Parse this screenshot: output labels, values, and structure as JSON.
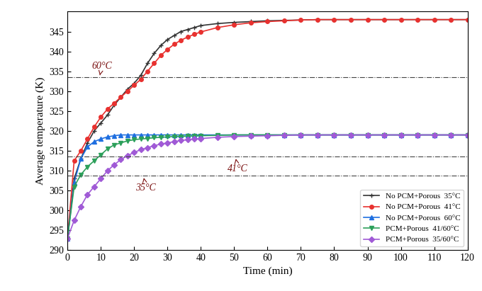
{
  "chart_data": {
    "type": "line",
    "x_label": "Time (min)",
    "y_label": "Average temperature (K)",
    "x": [
      0,
      2,
      4,
      6,
      8,
      10,
      12,
      14,
      16,
      18,
      20,
      22,
      24,
      26,
      28,
      30,
      32,
      34,
      36,
      38,
      40,
      45,
      50,
      55,
      60,
      65,
      70,
      75,
      80,
      85,
      90,
      95,
      100,
      105,
      110,
      115,
      120
    ],
    "series": [
      {
        "name": "No PCM+Porous  35°C",
        "color": "#333333",
        "marker": "+",
        "values": [
          293,
          308,
          313,
          317,
          320,
          322,
          324,
          326.5,
          328.5,
          330.5,
          332,
          334,
          337,
          339.5,
          341.5,
          343,
          344,
          345,
          345.5,
          346,
          346.5,
          347,
          347.3,
          347.5,
          347.7,
          347.8,
          347.9,
          348,
          348,
          348,
          348,
          348,
          348,
          348,
          348,
          348,
          348
        ]
      },
      {
        "name": "No PCM+Porous  41°C",
        "color": "#e8312f",
        "marker": "o",
        "values": [
          293,
          312.5,
          315,
          318,
          321,
          323.5,
          325.5,
          327,
          328.5,
          330,
          331.5,
          333,
          335,
          337,
          339,
          340.5,
          341.8,
          342.8,
          343.6,
          344.3,
          344.9,
          346,
          346.7,
          347.2,
          347.5,
          347.7,
          347.9,
          348,
          348,
          348,
          348,
          348,
          348,
          348,
          348,
          348,
          348
        ]
      },
      {
        "name": "No PCM+Porous  60°C",
        "color": "#1f6fe0",
        "marker": "^",
        "values": [
          293,
          307,
          313,
          316,
          317.3,
          318,
          318.5,
          318.8,
          319,
          319,
          319,
          319,
          319,
          319,
          319,
          319,
          319,
          319,
          319,
          319,
          319,
          319,
          319,
          319,
          319,
          319,
          319,
          319,
          319,
          319,
          319,
          319,
          319,
          319,
          319,
          319,
          319
        ]
      },
      {
        "name": "PCM+Porous  41/60°C",
        "color": "#2ca05a",
        "marker": "v",
        "values": [
          293,
          306,
          309,
          311,
          312.5,
          314,
          315.5,
          316.5,
          317,
          317.5,
          317.8,
          318,
          318.1,
          318.3,
          318.4,
          318.5,
          318.6,
          318.6,
          318.7,
          318.7,
          318.8,
          318.9,
          319,
          319,
          319,
          319,
          319,
          319,
          319,
          319,
          319,
          319,
          319,
          319,
          319,
          319,
          319
        ]
      },
      {
        "name": "PCM+Porous  35/60°C",
        "color": "#a05ad6",
        "marker": "D",
        "values": [
          293,
          297.5,
          301,
          304,
          306,
          308,
          310,
          311.5,
          312.8,
          313.8,
          314.6,
          315.3,
          315.8,
          316.3,
          316.7,
          317,
          317.3,
          317.6,
          317.8,
          318,
          318.1,
          318.4,
          318.6,
          318.7,
          318.8,
          318.9,
          319,
          319,
          319,
          319,
          319,
          319,
          319,
          319,
          319,
          319,
          319
        ]
      }
    ],
    "annotations": [
      {
        "text": "60°C",
        "y": 333.5
      },
      {
        "text": "41°C",
        "y": 313.5
      },
      {
        "text": "35°C",
        "y": 308.7
      }
    ],
    "xlim": [
      0,
      120
    ],
    "xticks": [
      0,
      10,
      20,
      30,
      40,
      50,
      60,
      70,
      80,
      90,
      100,
      110,
      120
    ],
    "ylim": [
      290,
      350
    ],
    "yticks": [
      290,
      295,
      300,
      305,
      310,
      315,
      320,
      325,
      330,
      335,
      340,
      345
    ],
    "legend": "lower right"
  }
}
